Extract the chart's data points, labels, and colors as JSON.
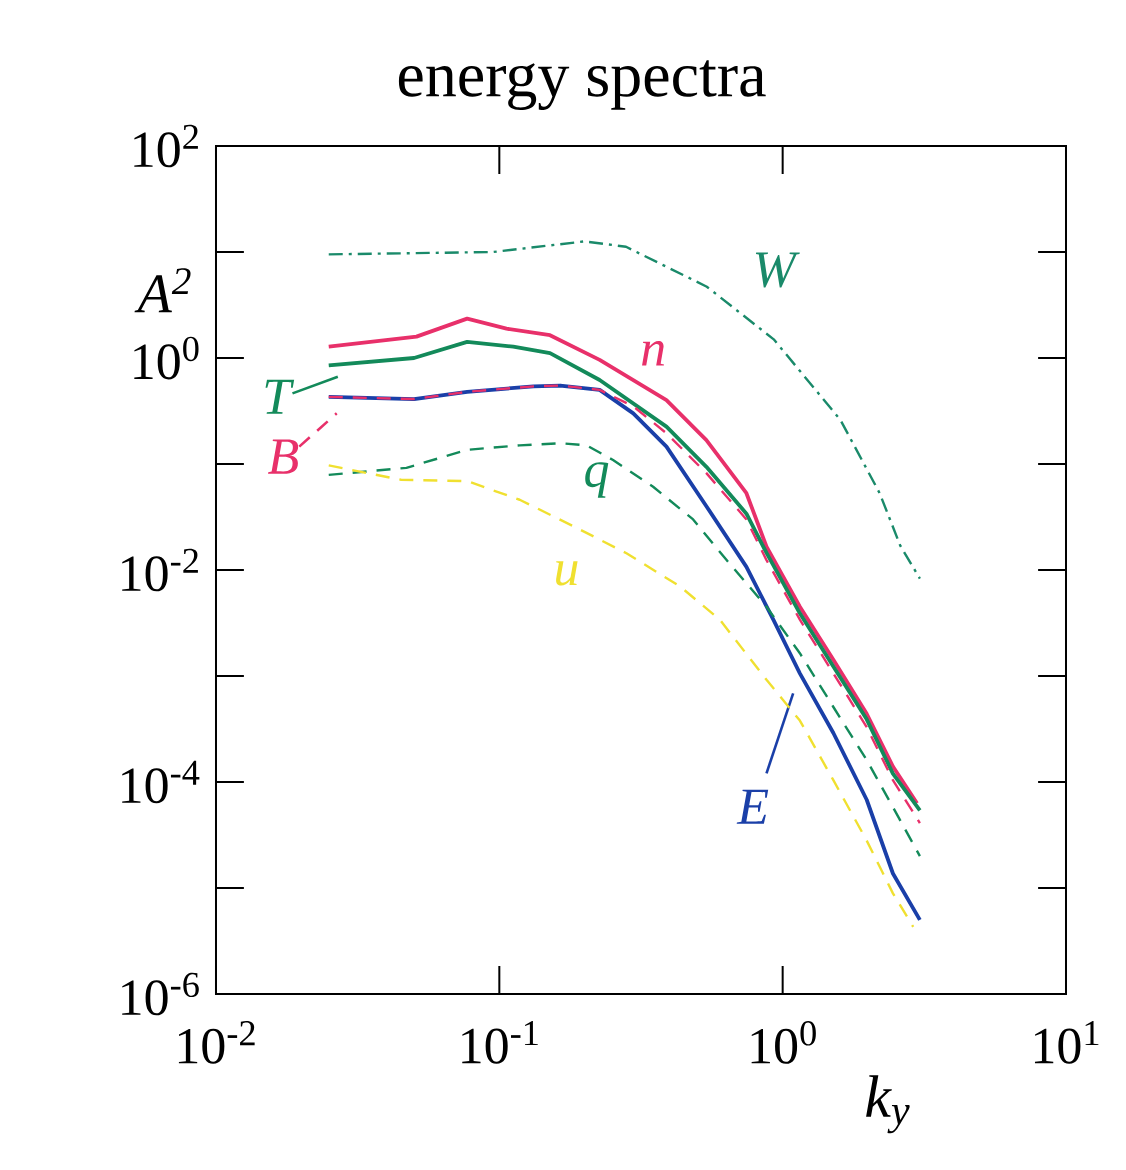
{
  "chart_data": {
    "type": "line",
    "title": "energy spectra",
    "xlabel": "k$_{y}$",
    "ylabel": "A$^{2}$",
    "log": "xy",
    "legend": "left",
    "xlim": [
      0.01,
      10
    ],
    "ylim": [
      1e-06,
      100
    ],
    "xticks": [
      {
        "value": 0.01,
        "label": "10$^{-2}$"
      },
      {
        "value": 0.1,
        "label": "10$^{-1}$"
      },
      {
        "value": 1,
        "label": "10$^{0}$"
      },
      {
        "value": 10,
        "label": "10$^{1}$"
      }
    ],
    "yticks": [
      {
        "value": 1e-06,
        "label": "10$^{-6}$"
      },
      {
        "value": 1e-05,
        "label": null
      },
      {
        "value": 0.0001,
        "label": "10$^{-4}$"
      },
      {
        "value": 0.001,
        "label": null
      },
      {
        "value": 0.01,
        "label": "10$^{-2}$"
      },
      {
        "value": 0.1,
        "label": null
      },
      {
        "value": 1,
        "label": "10$^{0}$"
      },
      {
        "value": 10,
        "label": null
      },
      {
        "value": 100,
        "label": "10$^{2}$"
      }
    ],
    "series": [
      {
        "name": "W",
        "color": "#1a8a6a",
        "line_style": "dashdot",
        "x": [
          0.025,
          0.095,
          0.2,
          0.28,
          0.54,
          0.93,
          1.6,
          2.2,
          2.6,
          3.05
        ],
        "values": [
          9.5,
          10,
          12.6,
          11.2,
          4.7,
          1.5,
          0.26,
          0.053,
          0.017,
          0.0083
        ]
      },
      {
        "name": "n",
        "color": "#e8306a",
        "line_style": "solid",
        "x": [
          0.025,
          0.051,
          0.077,
          0.106,
          0.151,
          0.226,
          0.389,
          0.538,
          0.745,
          0.877,
          1.15,
          1.51,
          1.98,
          2.45,
          2.98
        ],
        "values": [
          1.28,
          1.59,
          2.35,
          1.89,
          1.64,
          0.96,
          0.4,
          0.168,
          0.053,
          0.0166,
          0.0045,
          0.00142,
          0.00044,
          0.00014,
          6.3e-05
        ]
      },
      {
        "name": "T",
        "color": "#138a5a",
        "line_style": "solid",
        "x": [
          0.025,
          0.05,
          0.077,
          0.112,
          0.151,
          0.226,
          0.389,
          0.538,
          0.745,
          0.877,
          1.15,
          1.51,
          1.98,
          2.45,
          3.05
        ],
        "values": [
          0.85,
          1.0,
          1.42,
          1.28,
          1.11,
          0.62,
          0.225,
          0.094,
          0.034,
          0.0145,
          0.0039,
          0.00123,
          0.00039,
          0.00012,
          5.4e-05
        ]
      },
      {
        "name": "B",
        "color": "#e8306a",
        "line_style": "dashed",
        "x": [
          0.025,
          0.05,
          0.077,
          0.132,
          0.164,
          0.226,
          0.297,
          0.389,
          0.538,
          0.745,
          0.877,
          1.15,
          1.51,
          1.98,
          2.45,
          3.05
        ],
        "values": [
          0.43,
          0.41,
          0.48,
          0.54,
          0.55,
          0.5,
          0.35,
          0.195,
          0.082,
          0.03,
          0.0124,
          0.0034,
          0.00106,
          0.00033,
          0.000104,
          4.1e-05
        ]
      },
      {
        "name": "q",
        "color": "#138a5a",
        "line_style": "dashed",
        "x": [
          0.025,
          0.047,
          0.077,
          0.118,
          0.164,
          0.203,
          0.252,
          0.349,
          0.483,
          0.634,
          0.877,
          1.15,
          1.51,
          1.98,
          2.45,
          3.05
        ],
        "values": [
          0.079,
          0.092,
          0.136,
          0.15,
          0.157,
          0.15,
          0.109,
          0.061,
          0.03,
          0.0124,
          0.0045,
          0.00164,
          0.00051,
          0.000161,
          5.8e-05,
          2e-05
        ]
      },
      {
        "name": "u",
        "color": "#f0e030",
        "line_style": "dashed",
        "x": [
          0.025,
          0.045,
          0.077,
          0.118,
          0.182,
          0.281,
          0.434,
          0.6,
          0.877,
          1.15,
          1.51,
          1.98,
          2.45,
          2.89
        ],
        "values": [
          0.097,
          0.071,
          0.069,
          0.046,
          0.026,
          0.0144,
          0.007,
          0.0034,
          0.00092,
          0.00038,
          0.000104,
          2.8e-05,
          8.9e-06,
          4.3e-06
        ]
      },
      {
        "name": "E",
        "color": "#1a3fa8",
        "line_style": "solid",
        "x": [
          0.025,
          0.05,
          0.077,
          0.132,
          0.164,
          0.226,
          0.297,
          0.389,
          0.538,
          0.745,
          0.927,
          1.15,
          1.51,
          1.98,
          2.45,
          3.05
        ],
        "values": [
          0.43,
          0.41,
          0.48,
          0.54,
          0.55,
          0.5,
          0.3,
          0.146,
          0.04,
          0.0107,
          0.0034,
          0.00106,
          0.00029,
          6.8e-05,
          1.37e-05,
          5e-06
        ]
      }
    ]
  }
}
